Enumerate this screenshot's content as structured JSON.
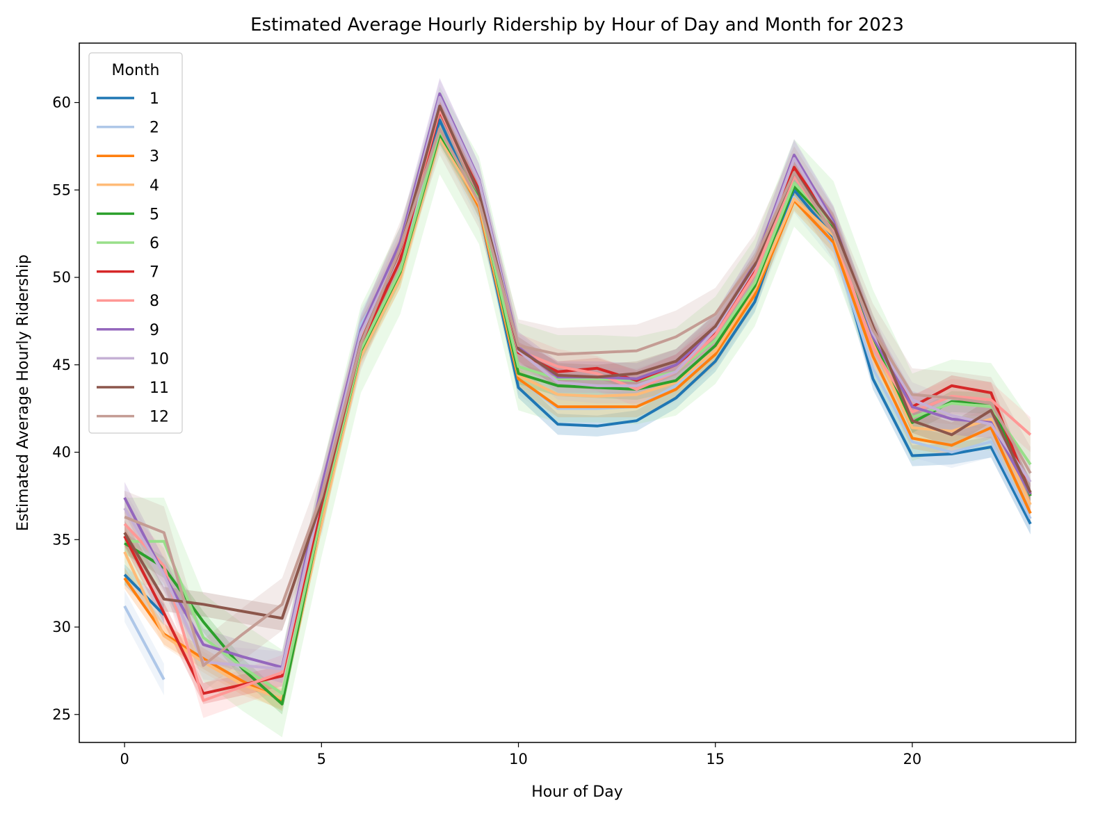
{
  "chart_data": {
    "type": "line",
    "title": "Estimated Average Hourly Ridership by Hour of Day and Month for 2023",
    "xlabel": "Hour of Day",
    "ylabel": "Estimated Average Hourly Ridership",
    "xlim": [
      -1.15,
      24.15
    ],
    "ylim": [
      23.4,
      63.4
    ],
    "xticks": [
      0,
      5,
      10,
      15,
      20
    ],
    "yticks": [
      25,
      30,
      35,
      40,
      45,
      50,
      55,
      60
    ],
    "grid": false,
    "legend": {
      "title": "Month",
      "position": "upper left"
    },
    "x": [
      0,
      1,
      2,
      3,
      4,
      5,
      6,
      7,
      8,
      9,
      10,
      11,
      12,
      13,
      14,
      15,
      16,
      17,
      18,
      19,
      20,
      21,
      22,
      23
    ],
    "series": [
      {
        "name": "1",
        "color": "#1f77b4",
        "band": 0.6,
        "values": [
          33.0,
          30.7,
          null,
          null,
          null,
          37.0,
          47.0,
          51.0,
          59.0,
          54.0,
          43.7,
          41.6,
          41.5,
          41.8,
          43.1,
          45.2,
          48.6,
          55.0,
          52.3,
          44.2,
          39.8,
          39.9,
          40.3,
          35.9
        ]
      },
      {
        "name": "2",
        "color": "#aec7e8",
        "band": 0.9,
        "values": [
          31.2,
          27.0,
          null,
          null,
          null,
          36.0,
          47.3,
          51.0,
          58.5,
          54.0,
          44.2,
          42.5,
          42.5,
          42.6,
          43.8,
          45.7,
          49.0,
          54.6,
          51.8,
          44.8,
          40.6,
          40.0,
          40.6,
          36.2
        ]
      },
      {
        "name": "3",
        "color": "#ff7f0e",
        "band": 0.6,
        "values": [
          32.8,
          29.6,
          28.2,
          26.9,
          25.8,
          36.0,
          45.7,
          50.0,
          58.3,
          54.0,
          44.2,
          42.6,
          42.6,
          42.6,
          43.6,
          45.6,
          49.0,
          54.4,
          52.0,
          45.5,
          40.8,
          40.4,
          41.4,
          36.5
        ]
      },
      {
        "name": "4",
        "color": "#ffbb78",
        "band": 0.6,
        "values": [
          34.3,
          29.5,
          28.0,
          26.7,
          25.9,
          36.0,
          45.5,
          50.0,
          58.0,
          54.2,
          44.4,
          43.3,
          43.2,
          43.3,
          44.0,
          45.8,
          49.3,
          54.5,
          52.4,
          46.2,
          41.4,
          41.2,
          41.9,
          37.0
        ]
      },
      {
        "name": "5",
        "color": "#2ca02c",
        "band": 0.6,
        "values": [
          34.8,
          33.4,
          30.3,
          27.6,
          25.6,
          36.5,
          45.8,
          50.3,
          58.2,
          54.5,
          44.5,
          43.8,
          43.7,
          43.6,
          44.1,
          46.1,
          49.5,
          55.2,
          52.8,
          46.6,
          41.7,
          42.9,
          42.8,
          37.5
        ]
      },
      {
        "name": "6",
        "color": "#98df8a",
        "band": 2.5,
        "values": [
          34.9,
          34.9,
          29.4,
          27.7,
          26.2,
          36.5,
          45.9,
          50.4,
          58.4,
          54.4,
          44.9,
          44.2,
          44.2,
          44.1,
          44.6,
          46.4,
          49.7,
          55.4,
          53.0,
          46.8,
          42.0,
          42.8,
          42.6,
          39.3
        ]
      },
      {
        "name": "7",
        "color": "#d62728",
        "band": 0.6,
        "values": [
          35.2,
          30.8,
          26.2,
          26.7,
          27.2,
          37.0,
          46.2,
          51.0,
          59.5,
          55.0,
          45.7,
          44.6,
          44.8,
          44.1,
          45.0,
          46.8,
          50.4,
          56.3,
          53.0,
          46.9,
          42.6,
          43.8,
          43.4,
          37.6
        ]
      },
      {
        "name": "8",
        "color": "#ff9896",
        "band": 1.0,
        "values": [
          35.9,
          33.5,
          25.8,
          26.6,
          27.4,
          37.5,
          46.5,
          51.5,
          59.6,
          54.8,
          45.8,
          44.9,
          44.5,
          43.6,
          44.6,
          46.7,
          50.2,
          55.8,
          52.6,
          46.0,
          42.3,
          43.2,
          43.0,
          41.0
        ]
      },
      {
        "name": "9",
        "color": "#9467bd",
        "band": 0.9,
        "values": [
          37.4,
          33.0,
          29.0,
          28.3,
          27.7,
          38.0,
          47.0,
          52.0,
          60.5,
          55.6,
          46.0,
          44.3,
          44.3,
          44.2,
          45.0,
          47.1,
          50.8,
          57.0,
          53.2,
          46.6,
          42.6,
          41.9,
          41.7,
          37.6
        ]
      },
      {
        "name": "10",
        "color": "#c5b0d5",
        "band": 1.0,
        "values": [
          36.8,
          33.0,
          28.0,
          27.8,
          27.6,
          37.5,
          46.8,
          51.6,
          60.3,
          55.5,
          45.8,
          44.0,
          43.8,
          43.8,
          44.6,
          47.0,
          50.6,
          56.8,
          53.0,
          46.8,
          43.0,
          42.1,
          41.6,
          38.3
        ]
      },
      {
        "name": "11",
        "color": "#8c564b",
        "band": 0.7,
        "values": [
          35.4,
          31.6,
          31.3,
          30.9,
          30.5,
          37.2,
          46.3,
          51.6,
          59.8,
          54.8,
          45.9,
          44.4,
          44.3,
          44.5,
          45.2,
          47.2,
          50.7,
          56.0,
          53.0,
          47.2,
          41.8,
          41.0,
          42.4,
          37.7
        ]
      },
      {
        "name": "12",
        "color": "#c49c94",
        "band": 1.5,
        "values": [
          36.3,
          35.4,
          27.8,
          29.6,
          31.3,
          37.5,
          46.2,
          51.7,
          58.5,
          54.3,
          46.1,
          45.6,
          45.7,
          45.8,
          46.6,
          47.9,
          51.0,
          56.0,
          52.5,
          47.0,
          43.3,
          43.1,
          42.8,
          38.8
        ]
      }
    ]
  }
}
